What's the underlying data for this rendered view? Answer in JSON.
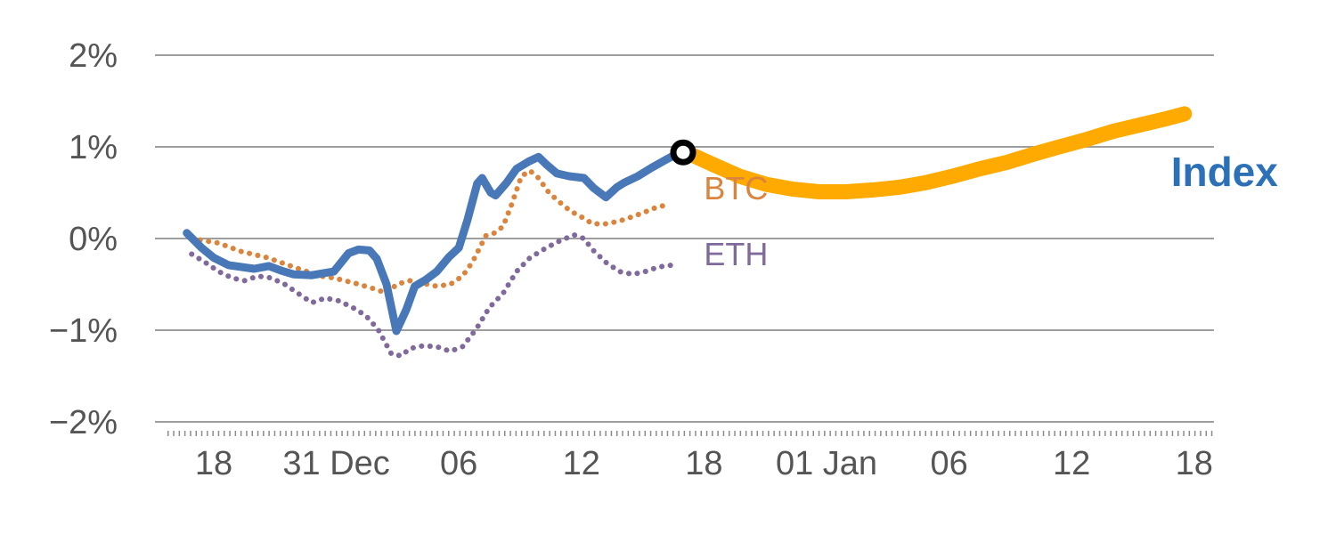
{
  "chart_data": {
    "type": "line",
    "title": "",
    "xlabel": "",
    "ylabel": "",
    "x_unit": "axis-tick-index (one unit per labeled x tick)",
    "x_axis": {
      "ticks": [
        {
          "position": 0,
          "label": "18"
        },
        {
          "position": 1,
          "label": "31 Dec"
        },
        {
          "position": 2,
          "label": "06"
        },
        {
          "position": 3,
          "label": "12"
        },
        {
          "position": 4,
          "label": "18"
        },
        {
          "position": 5,
          "label": "01 Jan"
        },
        {
          "position": 6,
          "label": "06"
        },
        {
          "position": 7,
          "label": "12"
        },
        {
          "position": 8,
          "label": "18"
        }
      ],
      "range": [
        -0.47,
        8.17
      ],
      "minor_tick_row": true
    },
    "y_axis": {
      "unit": "%",
      "range": [
        -2,
        2
      ],
      "ticks": [
        {
          "value": 2,
          "label": "2%"
        },
        {
          "value": 1,
          "label": "1%"
        },
        {
          "value": 0,
          "label": "0%"
        },
        {
          "value": -1,
          "label": "−1%"
        },
        {
          "value": -2,
          "label": "−2%"
        }
      ]
    },
    "grid": "horizontal",
    "legend_position": "inline-labels",
    "colors": {
      "grid": "#9e9e9e",
      "tick_label": "#555555",
      "axis_ticks": "#8c8c8c",
      "index_line": "#4878b8",
      "index_label": "#2c71b8",
      "btc": "#db843d",
      "eth": "#80699b",
      "forecast": "#ffaa00",
      "marker_ring": "#000000",
      "marker_fill": "#ffffff"
    },
    "series": [
      {
        "name": "ETH",
        "style": "dotted",
        "color": "#80699b",
        "points": [
          [
            -0.18,
            -0.17
          ],
          [
            -0.07,
            -0.26
          ],
          [
            0.04,
            -0.36
          ],
          [
            0.15,
            -0.43
          ],
          [
            0.25,
            -0.46
          ],
          [
            0.36,
            -0.41
          ],
          [
            0.47,
            -0.43
          ],
          [
            0.58,
            -0.5
          ],
          [
            0.69,
            -0.6
          ],
          [
            0.8,
            -0.7
          ],
          [
            0.91,
            -0.65
          ],
          [
            1.02,
            -0.68
          ],
          [
            1.13,
            -0.75
          ],
          [
            1.24,
            -0.84
          ],
          [
            1.34,
            -0.99
          ],
          [
            1.45,
            -1.26
          ],
          [
            1.53,
            -1.28
          ],
          [
            1.6,
            -1.2
          ],
          [
            1.71,
            -1.17
          ],
          [
            1.82,
            -1.18
          ],
          [
            1.93,
            -1.23
          ],
          [
            2.03,
            -1.18
          ],
          [
            2.14,
            -0.99
          ],
          [
            2.25,
            -0.75
          ],
          [
            2.36,
            -0.6
          ],
          [
            2.47,
            -0.36
          ],
          [
            2.58,
            -0.21
          ],
          [
            2.69,
            -0.12
          ],
          [
            2.8,
            -0.04
          ],
          [
            2.87,
            0.0
          ],
          [
            2.94,
            0.04
          ],
          [
            3.02,
            0.0
          ],
          [
            3.09,
            -0.12
          ],
          [
            3.2,
            -0.26
          ],
          [
            3.31,
            -0.36
          ],
          [
            3.42,
            -0.39
          ],
          [
            3.52,
            -0.36
          ],
          [
            3.63,
            -0.31
          ],
          [
            3.74,
            -0.29
          ]
        ]
      },
      {
        "name": "BTC",
        "style": "dotted",
        "color": "#db843d",
        "points": [
          [
            -0.18,
            0.0
          ],
          [
            0.04,
            -0.05
          ],
          [
            0.22,
            -0.14
          ],
          [
            0.44,
            -0.21
          ],
          [
            0.65,
            -0.31
          ],
          [
            0.87,
            -0.41
          ],
          [
            0.98,
            -0.43
          ],
          [
            1.16,
            -0.49
          ],
          [
            1.31,
            -0.55
          ],
          [
            1.42,
            -0.6
          ],
          [
            1.49,
            -0.5
          ],
          [
            1.6,
            -0.46
          ],
          [
            1.71,
            -0.49
          ],
          [
            1.82,
            -0.52
          ],
          [
            1.93,
            -0.5
          ],
          [
            2.03,
            -0.41
          ],
          [
            2.11,
            -0.26
          ],
          [
            2.22,
            0.03
          ],
          [
            2.29,
            0.06
          ],
          [
            2.36,
            0.13
          ],
          [
            2.43,
            0.37
          ],
          [
            2.51,
            0.68
          ],
          [
            2.58,
            0.74
          ],
          [
            2.65,
            0.66
          ],
          [
            2.73,
            0.51
          ],
          [
            2.8,
            0.42
          ],
          [
            2.91,
            0.3
          ],
          [
            3.02,
            0.22
          ],
          [
            3.09,
            0.16
          ],
          [
            3.2,
            0.16
          ],
          [
            3.31,
            0.19
          ],
          [
            3.42,
            0.24
          ],
          [
            3.52,
            0.29
          ],
          [
            3.63,
            0.35
          ],
          [
            3.69,
            0.36
          ]
        ]
      },
      {
        "name": "Index",
        "style": "solid",
        "color": "#4878b8",
        "points": [
          [
            -0.22,
            0.06
          ],
          [
            -0.1,
            -0.1
          ],
          [
            0.0,
            -0.21
          ],
          [
            0.12,
            -0.29
          ],
          [
            0.33,
            -0.33
          ],
          [
            0.45,
            -0.3
          ],
          [
            0.55,
            -0.35
          ],
          [
            0.65,
            -0.39
          ],
          [
            0.8,
            -0.4
          ],
          [
            0.98,
            -0.36
          ],
          [
            1.1,
            -0.16
          ],
          [
            1.18,
            -0.12
          ],
          [
            1.27,
            -0.13
          ],
          [
            1.33,
            -0.22
          ],
          [
            1.41,
            -0.5
          ],
          [
            1.49,
            -1.01
          ],
          [
            1.57,
            -0.78
          ],
          [
            1.64,
            -0.52
          ],
          [
            1.73,
            -0.45
          ],
          [
            1.82,
            -0.36
          ],
          [
            1.92,
            -0.2
          ],
          [
            2.0,
            -0.1
          ],
          [
            2.07,
            0.2
          ],
          [
            2.15,
            0.6
          ],
          [
            2.19,
            0.66
          ],
          [
            2.26,
            0.5
          ],
          [
            2.3,
            0.47
          ],
          [
            2.39,
            0.61
          ],
          [
            2.47,
            0.76
          ],
          [
            2.57,
            0.84
          ],
          [
            2.65,
            0.89
          ],
          [
            2.72,
            0.8
          ],
          [
            2.8,
            0.71
          ],
          [
            2.9,
            0.68
          ],
          [
            3.02,
            0.66
          ],
          [
            3.1,
            0.55
          ],
          [
            3.2,
            0.45
          ],
          [
            3.29,
            0.56
          ],
          [
            3.35,
            0.61
          ],
          [
            3.46,
            0.68
          ],
          [
            3.57,
            0.77
          ],
          [
            3.69,
            0.86
          ],
          [
            3.8,
            0.94
          ]
        ]
      },
      {
        "name": "Index forecast",
        "style": "forecast",
        "color": "#ffaa00",
        "points": [
          [
            3.84,
            0.95
          ],
          [
            4.07,
            0.81
          ],
          [
            4.29,
            0.68
          ],
          [
            4.51,
            0.59
          ],
          [
            4.72,
            0.54
          ],
          [
            4.94,
            0.51
          ],
          [
            5.16,
            0.51
          ],
          [
            5.38,
            0.53
          ],
          [
            5.6,
            0.56
          ],
          [
            5.81,
            0.61
          ],
          [
            6.03,
            0.68
          ],
          [
            6.25,
            0.76
          ],
          [
            6.47,
            0.83
          ],
          [
            6.69,
            0.92
          ],
          [
            6.9,
            1.0
          ],
          [
            7.12,
            1.08
          ],
          [
            7.34,
            1.17
          ],
          [
            7.56,
            1.24
          ],
          [
            7.78,
            1.31
          ],
          [
            7.92,
            1.36
          ]
        ]
      }
    ],
    "annotations": {
      "marker": {
        "x": 3.83,
        "y": 0.94,
        "shape": "ring"
      },
      "labels": [
        {
          "text": "BTC",
          "x": 4.0,
          "y": 0.55,
          "color": "#db843d",
          "size": 36,
          "weight": "normal"
        },
        {
          "text": "ETH",
          "x": 4.0,
          "y": -0.17,
          "color": "#80699b",
          "size": 36,
          "weight": "normal"
        },
        {
          "text": "Index",
          "x": 7.81,
          "y": 0.73,
          "color": "#2c71b8",
          "size": 46,
          "weight": "bold"
        }
      ]
    }
  }
}
